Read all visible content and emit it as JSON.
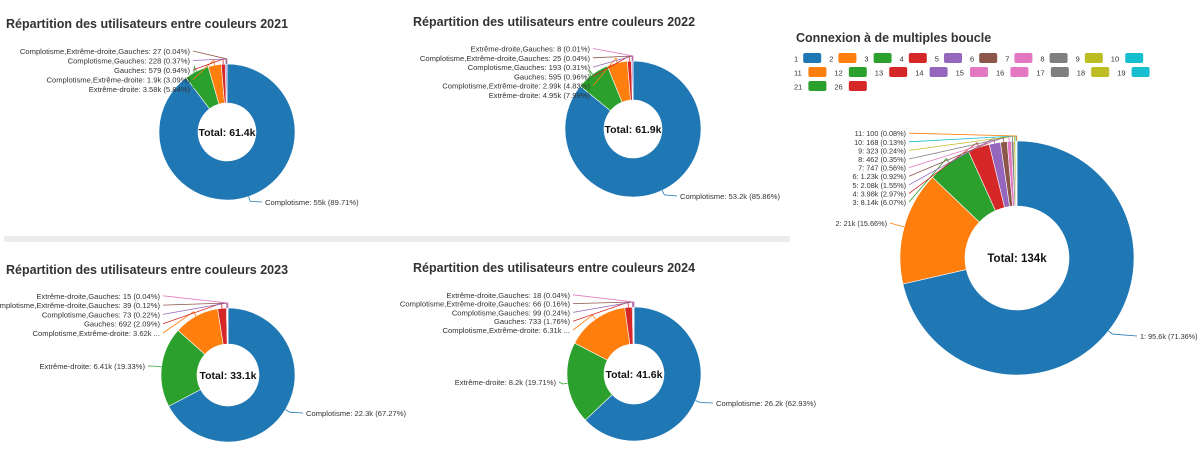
{
  "chart_data": [
    {
      "type": "pie",
      "title": "Répartition des utilisateurs entre couleurs 2021",
      "center_label": "Total: 61.4k",
      "slices": [
        {
          "label": "Complotisme",
          "value": 55000,
          "display": "55k",
          "percent": 89.71,
          "color": "#1f77b4"
        },
        {
          "label": "Extrême-droite",
          "value": 3580,
          "display": "3.58k",
          "percent": 5.84,
          "color": "#2ca02c"
        },
        {
          "label": "Complotisme,Extrême-droite",
          "value": 1900,
          "display": "1.9k",
          "percent": 3.09,
          "color": "#ff7f0e"
        },
        {
          "label": "Gauches",
          "value": 579,
          "display": "579",
          "percent": 0.94,
          "color": "#d62728"
        },
        {
          "label": "Complotisme,Gauches",
          "value": 228,
          "display": "228",
          "percent": 0.37,
          "color": "#9467bd"
        },
        {
          "label": "Complotisme,Extrême-droite,Gauches",
          "value": 27,
          "display": "27",
          "percent": 0.04,
          "color": "#8c564b"
        }
      ]
    },
    {
      "type": "pie",
      "title": "Répartition des utilisateurs entre couleurs 2022",
      "center_label": "Total: 61.9k",
      "slices": [
        {
          "label": "Complotisme",
          "value": 53200,
          "display": "53.2k",
          "percent": 85.86,
          "color": "#1f77b4"
        },
        {
          "label": "Extrême-droite",
          "value": 4950,
          "display": "4.95k",
          "percent": 7.99,
          "color": "#2ca02c"
        },
        {
          "label": "Complotisme,Extrême-droite",
          "value": 2990,
          "display": "2.99k",
          "percent": 4.83,
          "color": "#ff7f0e"
        },
        {
          "label": "Gauches",
          "value": 595,
          "display": "595",
          "percent": 0.96,
          "color": "#d62728"
        },
        {
          "label": "Complotisme,Gauches",
          "value": 193,
          "display": "193",
          "percent": 0.31,
          "color": "#9467bd"
        },
        {
          "label": "Complotisme,Extrême-droite,Gauches",
          "value": 25,
          "display": "25",
          "percent": 0.04,
          "color": "#8c564b"
        },
        {
          "label": "Extrême-droite,Gauches",
          "value": 8,
          "display": "8",
          "percent": 0.01,
          "color": "#e377c2"
        }
      ]
    },
    {
      "type": "pie",
      "title": "Répartition des utilisateurs entre couleurs 2023",
      "center_label": "Total: 33.1k",
      "slices": [
        {
          "label": "Complotisme",
          "value": 22300,
          "display": "22.3k",
          "percent": 67.27,
          "color": "#1f77b4"
        },
        {
          "label": "Extrême-droite",
          "value": 6410,
          "display": "6.41k",
          "percent": 19.33,
          "color": "#2ca02c"
        },
        {
          "label": "Complotisme,Extrême-droite",
          "value": 3620,
          "display": "3.62k ...",
          "percent": null,
          "color": "#ff7f0e"
        },
        {
          "label": "Gauches",
          "value": 692,
          "display": "692",
          "percent": 2.09,
          "color": "#d62728"
        },
        {
          "label": "Complotisme,Gauches",
          "value": 73,
          "display": "73",
          "percent": 0.22,
          "color": "#9467bd"
        },
        {
          "label": "Complotisme,Extrême-droite,Gauches",
          "value": 39,
          "display": "39",
          "percent": 0.12,
          "color": "#8c564b"
        },
        {
          "label": "Extrême-droite,Gauches",
          "value": 15,
          "display": "15",
          "percent": 0.04,
          "color": "#e377c2"
        }
      ]
    },
    {
      "type": "pie",
      "title": "Répartition des utilisateurs entre couleurs 2024",
      "center_label": "Total: 41.6k",
      "slices": [
        {
          "label": "Complotisme",
          "value": 26200,
          "display": "26.2k",
          "percent": 62.93,
          "color": "#1f77b4"
        },
        {
          "label": "Extrême-droite",
          "value": 8200,
          "display": "8.2k",
          "percent": 19.71,
          "color": "#2ca02c"
        },
        {
          "label": "Complotisme,Extrême-droite",
          "value": 6310,
          "display": "6.31k ...",
          "percent": null,
          "color": "#ff7f0e"
        },
        {
          "label": "Gauches",
          "value": 733,
          "display": "733",
          "percent": 1.76,
          "color": "#d62728"
        },
        {
          "label": "Complotisme,Gauches",
          "value": 99,
          "display": "99",
          "percent": 0.24,
          "color": "#9467bd"
        },
        {
          "label": "Complotisme,Extrême-droite,Gauches",
          "value": 66,
          "display": "66",
          "percent": 0.16,
          "color": "#8c564b"
        },
        {
          "label": "Extrême-droite,Gauches",
          "value": 18,
          "display": "18",
          "percent": 0.04,
          "color": "#e377c2"
        }
      ]
    },
    {
      "type": "pie",
      "title": "Connexion à de multiples boucle",
      "center_label": "Total: 134k",
      "legend_placement": "top",
      "legend": [
        {
          "label": "1",
          "color": "#1f77b4"
        },
        {
          "label": "2",
          "color": "#ff7f0e"
        },
        {
          "label": "3",
          "color": "#2ca02c"
        },
        {
          "label": "4",
          "color": "#d62728"
        },
        {
          "label": "5",
          "color": "#9467bd"
        },
        {
          "label": "6",
          "color": "#8c564b"
        },
        {
          "label": "7",
          "color": "#e377c2"
        },
        {
          "label": "8",
          "color": "#7f7f7f"
        },
        {
          "label": "9",
          "color": "#bcbd22"
        },
        {
          "label": "10",
          "color": "#17becf"
        },
        {
          "label": "11",
          "color": "#ff7f0e"
        },
        {
          "label": "12",
          "color": "#2ca02c"
        },
        {
          "label": "13",
          "color": "#d62728"
        },
        {
          "label": "14",
          "color": "#9467bd"
        },
        {
          "label": "15",
          "color": "#e377c2"
        },
        {
          "label": "16",
          "color": "#e377c2"
        },
        {
          "label": "17",
          "color": "#7f7f7f"
        },
        {
          "label": "18",
          "color": "#bcbd22"
        },
        {
          "label": "19",
          "color": "#17becf"
        },
        {
          "label": "21",
          "color": "#2ca02c"
        },
        {
          "label": "26",
          "color": "#d62728"
        }
      ],
      "slices": [
        {
          "label": "1",
          "value": 95600,
          "display": "95.6k",
          "percent": 71.36,
          "color": "#1f77b4"
        },
        {
          "label": "2",
          "value": 21000,
          "display": "21k",
          "percent": 15.66,
          "color": "#ff7f0e"
        },
        {
          "label": "3",
          "value": 8140,
          "display": "8.14k",
          "percent": 6.07,
          "color": "#2ca02c"
        },
        {
          "label": "4",
          "value": 3980,
          "display": "3.98k",
          "percent": 2.97,
          "color": "#d62728"
        },
        {
          "label": "5",
          "value": 2080,
          "display": "2.08k",
          "percent": 1.55,
          "color": "#9467bd"
        },
        {
          "label": "6",
          "value": 1230,
          "display": "1.23k",
          "percent": 0.92,
          "color": "#8c564b"
        },
        {
          "label": "7",
          "value": 747,
          "display": "747",
          "percent": 0.56,
          "color": "#e377c2"
        },
        {
          "label": "8",
          "value": 462,
          "display": "462",
          "percent": 0.35,
          "color": "#7f7f7f"
        },
        {
          "label": "9",
          "value": 323,
          "display": "323",
          "percent": 0.24,
          "color": "#bcbd22"
        },
        {
          "label": "10",
          "value": 168,
          "display": "168",
          "percent": 0.13,
          "color": "#17becf"
        },
        {
          "label": "11",
          "value": 100,
          "display": "100",
          "percent": 0.08,
          "color": "#ff7f0e"
        }
      ]
    }
  ]
}
